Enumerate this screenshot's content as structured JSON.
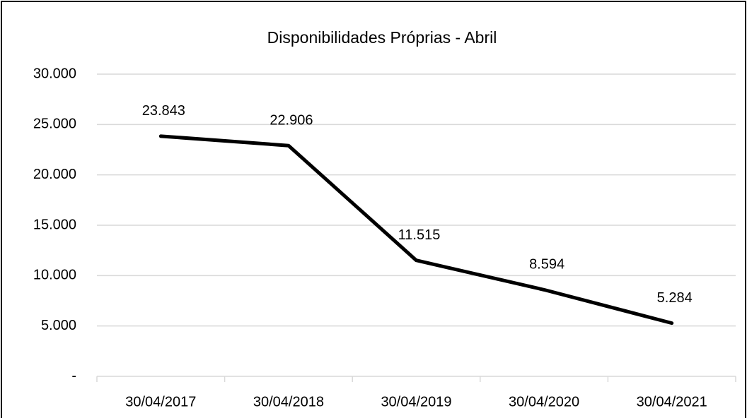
{
  "chart_data": {
    "type": "line",
    "title": "Disponibilidades Próprias - Abril",
    "categories": [
      "30/04/2017",
      "30/04/2018",
      "30/04/2019",
      "30/04/2020",
      "30/04/2021"
    ],
    "series": [
      {
        "name": "Disponibilidades Próprias",
        "color": "#000000",
        "values": [
          23843,
          22906,
          11515,
          8594,
          5284
        ],
        "value_labels": [
          "23.843",
          "22.906",
          "11.515",
          "8.594",
          "5.284"
        ]
      }
    ],
    "ylim": [
      0,
      30000
    ],
    "yticks": [
      {
        "value": 0,
        "label": "-"
      },
      {
        "value": 5000,
        "label": "5.000"
      },
      {
        "value": 10000,
        "label": "10.000"
      },
      {
        "value": 15000,
        "label": "15.000"
      },
      {
        "value": 20000,
        "label": "20.000"
      },
      {
        "value": 25000,
        "label": "25.000"
      },
      {
        "value": 30000,
        "label": "30.000"
      }
    ],
    "grid": true
  }
}
